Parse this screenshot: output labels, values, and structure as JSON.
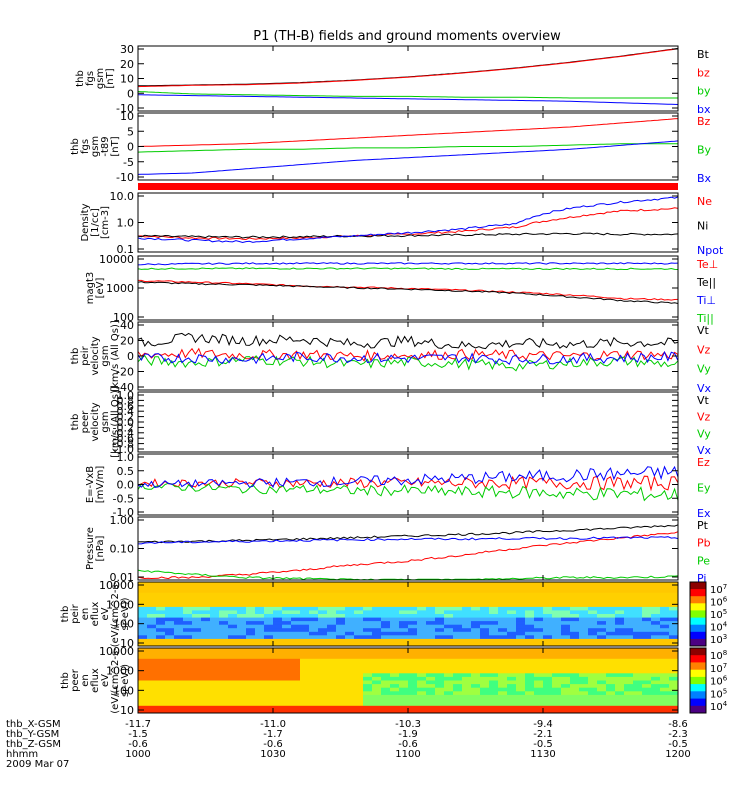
{
  "title": "P1 (TH-B) fields and ground moments overview",
  "chart_data": [
    {
      "type": "line",
      "ylabel": [
        "thb",
        "fgs",
        "gsm",
        "[nT]"
      ],
      "ylim": [
        -10,
        30
      ],
      "yticks": [
        "30",
        "20",
        "10",
        "0",
        "-10"
      ],
      "series": [
        {
          "name": "Bt",
          "color": "#000000",
          "values": [
            5.5,
            6,
            6.5,
            7.5,
            9,
            11,
            13.5,
            16.5,
            20,
            24,
            28.5
          ]
        },
        {
          "name": "bz",
          "color": "#ff0000",
          "values": [
            5,
            5.8,
            6.2,
            7.2,
            8.8,
            10.8,
            13.3,
            16.3,
            19.8,
            23.8,
            28.3
          ]
        },
        {
          "name": "by",
          "color": "#00cc00",
          "values": [
            2,
            0.5,
            0,
            -0.5,
            -1,
            -1,
            -1.5,
            -1.5,
            -2,
            -2,
            -2
          ]
        },
        {
          "name": "bx",
          "color": "#0000ff",
          "values": [
            0,
            -0.5,
            -1,
            -1.5,
            -2,
            -2.5,
            -3,
            -3.5,
            -4,
            -5,
            -6
          ]
        }
      ]
    },
    {
      "type": "line",
      "ylabel": [
        "thb",
        "fgs",
        "gsm",
        "-t89",
        "[nT]"
      ],
      "ylim": [
        -12,
        12
      ],
      "yticks": [
        "10",
        "5",
        "0",
        "-5",
        "-10"
      ],
      "series": [
        {
          "name": "Bz",
          "color": "#ff0000",
          "values": [
            0,
            0.5,
            1,
            2,
            3,
            4,
            5,
            6,
            7,
            8.5,
            10
          ]
        },
        {
          "name": "By",
          "color": "#00cc00",
          "values": [
            -2,
            -1.5,
            -1,
            -1,
            -0.5,
            -0.5,
            0,
            0,
            0.5,
            1,
            1
          ]
        },
        {
          "name": "Bx",
          "color": "#0000ff",
          "values": [
            -10,
            -9.5,
            -8,
            -6.5,
            -5,
            -4,
            -3,
            -2,
            -1,
            0.5,
            2
          ]
        }
      ]
    },
    {
      "type": "line",
      "scale": "log",
      "ylabel": [
        "Density",
        "[1/cc]",
        "[cm-3]"
      ],
      "ylim": [
        0.1,
        10
      ],
      "yticks": [
        "10.0",
        "1.0",
        "0.1"
      ],
      "series": [
        {
          "name": "Ne",
          "color": "#ff0000",
          "values": [
            0.35,
            0.3,
            0.28,
            0.3,
            0.35,
            0.4,
            0.5,
            0.7,
            1.5,
            2.5,
            3
          ]
        },
        {
          "name": "Ni",
          "color": "#000000",
          "values": [
            0.35,
            0.33,
            0.32,
            0.33,
            0.35,
            0.36,
            0.38,
            0.4,
            0.42,
            0.4,
            0.4
          ]
        },
        {
          "name": "Npot",
          "color": "#0000ff",
          "values": [
            0.3,
            0.25,
            0.22,
            0.28,
            0.35,
            0.45,
            0.6,
            0.9,
            3,
            5,
            7
          ]
        }
      ]
    },
    {
      "type": "line",
      "scale": "log",
      "ylabel": [
        "magt3",
        "[eV]"
      ],
      "ylim": [
        10,
        10000
      ],
      "yticks": [
        "10000",
        "1000",
        "100"
      ],
      "series": [
        {
          "name": "Te⊥",
          "color": "#ff0000",
          "values": [
            700,
            600,
            500,
            400,
            350,
            300,
            250,
            200,
            150,
            100,
            90
          ]
        },
        {
          "name": "Te||",
          "color": "#000000",
          "values": [
            600,
            500,
            450,
            380,
            320,
            280,
            230,
            180,
            120,
            80,
            60
          ]
        },
        {
          "name": "Ti⊥",
          "color": "#0000ff",
          "values": [
            4000,
            4300,
            4500,
            4500,
            4500,
            4500,
            4500,
            4500,
            4500,
            4500,
            4500
          ]
        },
        {
          "name": "Ti||",
          "color": "#00cc00",
          "values": [
            2500,
            2600,
            2600,
            2600,
            2600,
            2600,
            2500,
            2500,
            2500,
            2500,
            2500
          ]
        }
      ]
    },
    {
      "type": "line",
      "ylabel": [
        "thb",
        "peir",
        "velocity",
        "gsm",
        "[km/s (All Qs)]"
      ],
      "ylim": [
        -40,
        40
      ],
      "yticks": [
        "40",
        "20",
        "0",
        "-20",
        "-40"
      ],
      "series": [
        {
          "name": "Vt",
          "color": "#000000",
          "values": [
            15,
            22,
            18,
            20,
            14,
            18,
            12,
            15,
            14,
            16,
            15
          ]
        },
        {
          "name": "Vz",
          "color": "#ff0000",
          "values": [
            2,
            3,
            1,
            2,
            0,
            1,
            2,
            1,
            0,
            2,
            1
          ]
        },
        {
          "name": "Vy",
          "color": "#00cc00",
          "values": [
            -5,
            -8,
            -4,
            -6,
            -10,
            -7,
            -9,
            -12,
            -8,
            -6,
            -10
          ]
        },
        {
          "name": "Vx",
          "color": "#0000ff",
          "values": [
            -3,
            -2,
            -4,
            -1,
            -2,
            -3,
            -2,
            -4,
            -3,
            -2,
            -1
          ]
        }
      ]
    },
    {
      "type": "line",
      "ylabel": [
        "thb",
        "peer",
        "velocity",
        "gsm",
        "[km/s (All Qs)]"
      ],
      "ylim": [
        -1,
        1
      ],
      "yticks": [
        "1.0",
        "0.8",
        "0.6",
        "0.4",
        "0.2",
        "0.0",
        "-0.2",
        "-0.4",
        "-0.6",
        "-0.8",
        "-1.0"
      ],
      "series": [
        {
          "name": "Vt",
          "color": "#000000",
          "values": []
        },
        {
          "name": "Vz",
          "color": "#ff0000",
          "values": []
        },
        {
          "name": "Vy",
          "color": "#00cc00",
          "values": []
        },
        {
          "name": "Vx",
          "color": "#0000ff",
          "values": []
        }
      ]
    },
    {
      "type": "line",
      "ylabel": [
        "E=-VxB",
        "[mV/m]"
      ],
      "ylim": [
        -1,
        1
      ],
      "yticks": [
        "1.0",
        "0.5",
        "0.0",
        "-0.5",
        "-1.0"
      ],
      "series": [
        {
          "name": "Ez",
          "color": "#ff0000",
          "values": [
            0.05,
            0.05,
            0.05,
            0.05,
            0.05,
            0.05,
            0.05,
            0.05,
            0.05,
            0.05,
            0.05
          ]
        },
        {
          "name": "Ey",
          "color": "#00cc00",
          "values": [
            -0.05,
            -0.1,
            -0.15,
            -0.15,
            -0.2,
            -0.2,
            -0.25,
            -0.25,
            -0.3,
            -0.3,
            -0.35
          ]
        },
        {
          "name": "Ex",
          "color": "#0000ff",
          "values": [
            0.0,
            0.02,
            0.05,
            0.08,
            0.1,
            0.15,
            0.2,
            0.25,
            0.3,
            0.35,
            0.4
          ]
        }
      ]
    },
    {
      "type": "line",
      "scale": "log",
      "ylabel": [
        "Pressure",
        "[nPa]"
      ],
      "ylim": [
        0.01,
        1
      ],
      "yticks": [
        "1.00",
        "0.10",
        "0.01"
      ],
      "series": [
        {
          "name": "Pt",
          "color": "#000000",
          "values": [
            0.16,
            0.17,
            0.18,
            0.2,
            0.22,
            0.25,
            0.28,
            0.32,
            0.38,
            0.45,
            0.55
          ]
        },
        {
          "name": "Pb",
          "color": "#ff0000",
          "values": [
            0.012,
            0.012,
            0.015,
            0.02,
            0.03,
            0.04,
            0.06,
            0.1,
            0.15,
            0.22,
            0.32
          ]
        },
        {
          "name": "Pe",
          "color": "#00cc00",
          "values": [
            0.02,
            0.015,
            0.012,
            0.011,
            0.01,
            0.01,
            0.01,
            0.011,
            0.012,
            0.012,
            0.013
          ]
        },
        {
          "name": "Pi",
          "color": "#0000ff",
          "values": [
            0.15,
            0.16,
            0.17,
            0.18,
            0.19,
            0.2,
            0.2,
            0.21,
            0.21,
            0.22,
            0.22
          ]
        }
      ]
    },
    {
      "type": "heatmap",
      "scale": "log",
      "ylabel": [
        "thb",
        "peir",
        "en",
        "eflux",
        "eV",
        "(eV/(cm^2-s-",
        "sr-eV))"
      ],
      "ylim": [
        10,
        20000
      ],
      "yticks": [
        "10000",
        "1000",
        "100",
        "10"
      ],
      "colorbar": {
        "ticks": [
          "10^7",
          "10^6",
          "10^5",
          "10^4",
          "10^3"
        ]
      }
    },
    {
      "type": "heatmap",
      "scale": "log",
      "ylabel": [
        "thb",
        "peer",
        "en",
        "eflux",
        "eV",
        "(eV/(cm^2-s-",
        "sr-eV))"
      ],
      "ylim": [
        10,
        20000
      ],
      "yticks": [
        "10000",
        "1000",
        "100",
        "10"
      ],
      "colorbar": {
        "ticks": [
          "10^8",
          "10^7",
          "10^6",
          "10^5",
          "10^4"
        ]
      }
    }
  ],
  "x_axis": {
    "rows": [
      {
        "label": "thb_X-GSM",
        "values": [
          "-11.7",
          "-11.0",
          "-10.3",
          "-9.4",
          "-8.6"
        ]
      },
      {
        "label": "thb_Y-GSM",
        "values": [
          "-1.5",
          "-1.7",
          "-1.9",
          "-2.1",
          "-2.3"
        ]
      },
      {
        "label": "thb_Z-GSM",
        "values": [
          "-0.6",
          "-0.6",
          "-0.6",
          "-0.5",
          "-0.5"
        ]
      },
      {
        "label": "hhmm",
        "values": [
          "1000",
          "1030",
          "1100",
          "1130",
          "1200"
        ]
      }
    ],
    "date": "2009 Mar 07"
  }
}
